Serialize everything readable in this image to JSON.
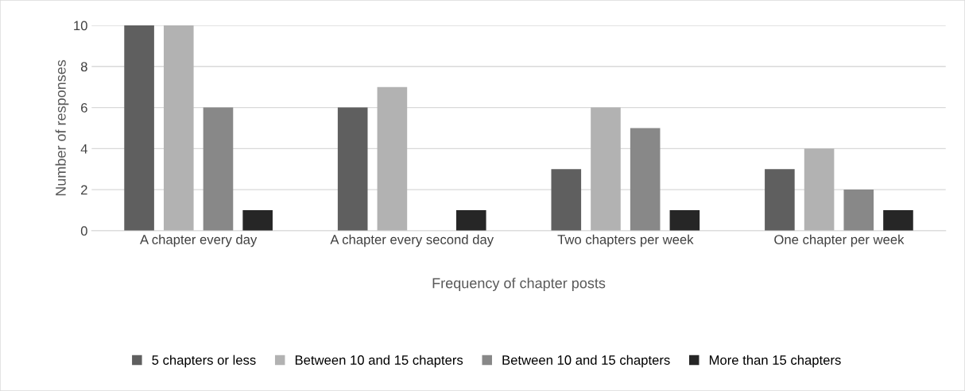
{
  "chart_data": {
    "type": "bar",
    "xlabel": "Frequency of chapter posts",
    "ylabel": "Number of responses",
    "categories": [
      "A chapter every day",
      "A chapter every second day",
      "Two chapters per week",
      "One chapter per week"
    ],
    "series": [
      {
        "name": "5 chapters or less",
        "color": "#5f5f5f",
        "values": [
          10,
          6,
          3,
          3
        ]
      },
      {
        "name": "Between 10 and 15 chapters",
        "color": "#b2b2b2",
        "values": [
          10,
          7,
          6,
          4
        ]
      },
      {
        "name": "Between 10 and 15 chapters",
        "color": "#888888",
        "values": [
          6,
          0,
          5,
          2
        ]
      },
      {
        "name": "More than 15 chapters",
        "color": "#262626",
        "values": [
          1,
          1,
          1,
          1
        ]
      }
    ],
    "ylim": [
      0,
      10
    ],
    "yticks": [
      0,
      2,
      4,
      6,
      8,
      10
    ],
    "grid": "y",
    "legend": "bottom"
  }
}
